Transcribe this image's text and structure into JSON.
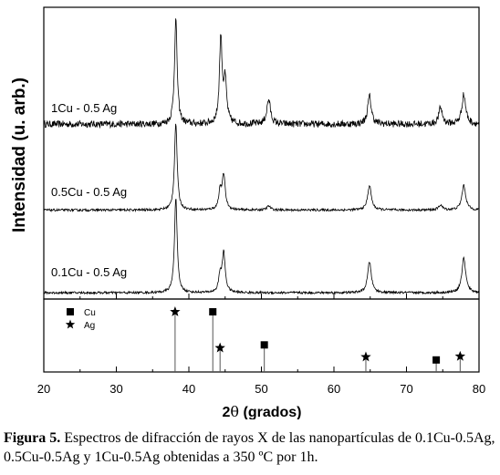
{
  "chart_data": {
    "type": "line",
    "xlabel_main": "2",
    "xlabel_theta": "θ",
    "xlabel_rest": " (grados)",
    "ylabel": "Intensidad (u. arb.)",
    "xlim": [
      20,
      80
    ],
    "x_ticks": [
      "20",
      "30",
      "40",
      "50",
      "60",
      "70",
      "80"
    ],
    "grid": false,
    "series": [
      {
        "name": "1Cu - 0.5 Ag",
        "baseline": 0.3,
        "noise": 0.035,
        "peaks": [
          {
            "x": 38.2,
            "h": 3.2,
            "w": 0.22
          },
          {
            "x": 44.4,
            "h": 2.6,
            "w": 0.22
          },
          {
            "x": 45.0,
            "h": 1.25,
            "w": 0.25
          },
          {
            "x": 51.0,
            "h": 0.75,
            "w": 0.3
          },
          {
            "x": 64.9,
            "h": 0.85,
            "w": 0.3
          },
          {
            "x": 74.7,
            "h": 0.5,
            "w": 0.3
          },
          {
            "x": 77.9,
            "h": 0.9,
            "w": 0.32
          }
        ]
      },
      {
        "name": "0.5Cu - 0.5 Ag",
        "baseline": 0.1,
        "noise": 0.012,
        "peaks": [
          {
            "x": 38.2,
            "h": 2.65,
            "w": 0.22
          },
          {
            "x": 44.3,
            "h": 0.55,
            "w": 0.22
          },
          {
            "x": 44.8,
            "h": 1.05,
            "w": 0.25
          },
          {
            "x": 51.0,
            "h": 0.12,
            "w": 0.3
          },
          {
            "x": 64.9,
            "h": 0.75,
            "w": 0.3
          },
          {
            "x": 74.7,
            "h": 0.15,
            "w": 0.3
          },
          {
            "x": 77.9,
            "h": 0.75,
            "w": 0.32
          }
        ]
      },
      {
        "name": "0.1Cu - 0.5 Ag",
        "baseline": 0.08,
        "noise": 0.012,
        "peaks": [
          {
            "x": 38.2,
            "h": 2.9,
            "w": 0.22
          },
          {
            "x": 44.3,
            "h": 0.5,
            "w": 0.22
          },
          {
            "x": 44.8,
            "h": 1.2,
            "w": 0.25
          },
          {
            "x": 64.9,
            "h": 0.95,
            "w": 0.3
          },
          {
            "x": 77.9,
            "h": 1.05,
            "w": 0.32
          }
        ]
      }
    ],
    "reference": {
      "legend": [
        {
          "name": "Cu",
          "marker": "square"
        },
        {
          "name": "Ag",
          "marker": "star"
        }
      ],
      "lines": [
        {
          "phase": "Ag",
          "x": 38.1,
          "intensity": 100
        },
        {
          "phase": "Cu",
          "x": 43.3,
          "intensity": 100
        },
        {
          "phase": "Ag",
          "x": 44.3,
          "intensity": 40
        },
        {
          "phase": "Cu",
          "x": 50.4,
          "intensity": 45
        },
        {
          "phase": "Ag",
          "x": 64.4,
          "intensity": 25
        },
        {
          "phase": "Cu",
          "x": 74.1,
          "intensity": 20
        },
        {
          "phase": "Ag",
          "x": 77.4,
          "intensity": 26
        }
      ]
    }
  },
  "caption": {
    "label": "Figura 5.",
    "text": " Espectros de difracción de rayos X  de las nanopartículas de 0.1Cu-0.5Ag, 0.5Cu-0.5Ag y 1Cu-0.5Ag obtenidas a 350  ºC por 1h."
  }
}
